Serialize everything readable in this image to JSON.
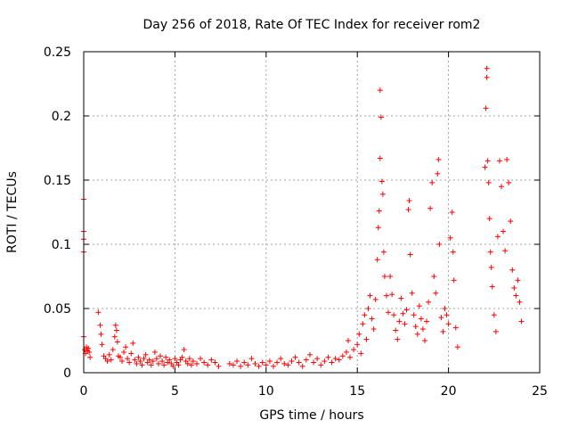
{
  "chart_data": {
    "type": "scatter",
    "title": "Day 256 of 2018, Rate Of TEC Index for receiver rom2",
    "xlabel": "GPS time / hours",
    "ylabel": "ROTI / TECUs",
    "xlim": [
      0,
      25
    ],
    "ylim": [
      0,
      0.25
    ],
    "xticks": [
      0,
      5,
      10,
      15,
      20,
      25
    ],
    "yticks": [
      0,
      0.05,
      0.1,
      0.15,
      0.2,
      0.25
    ],
    "xtick_labels": [
      "0",
      "5",
      "10",
      "15",
      "20",
      "25"
    ],
    "ytick_labels": [
      "0",
      "0.05",
      "0.1",
      "0.15",
      "0.2",
      "0.25"
    ],
    "grid": true,
    "marker": "+",
    "series": [
      {
        "color": "#ff0000",
        "points": [
          [
            0.0,
            0.135
          ],
          [
            0.0,
            0.11
          ],
          [
            0.0,
            0.104
          ],
          [
            0.0,
            0.094
          ],
          [
            0.0,
            0.028
          ],
          [
            0.05,
            0.018
          ],
          [
            0.1,
            0.015
          ],
          [
            0.15,
            0.02
          ],
          [
            0.2,
            0.017
          ],
          [
            0.25,
            0.019
          ],
          [
            0.3,
            0.016
          ],
          [
            0.35,
            0.012
          ],
          [
            0.8,
            0.047
          ],
          [
            0.9,
            0.037
          ],
          [
            0.95,
            0.03
          ],
          [
            1.0,
            0.022
          ],
          [
            1.1,
            0.013
          ],
          [
            1.2,
            0.011
          ],
          [
            1.3,
            0.009
          ],
          [
            1.4,
            0.014
          ],
          [
            1.5,
            0.01
          ],
          [
            1.6,
            0.018
          ],
          [
            1.7,
            0.028
          ],
          [
            1.75,
            0.037
          ],
          [
            1.8,
            0.033
          ],
          [
            1.85,
            0.024
          ],
          [
            1.9,
            0.013
          ],
          [
            2.0,
            0.012
          ],
          [
            2.1,
            0.009
          ],
          [
            2.2,
            0.016
          ],
          [
            2.3,
            0.02
          ],
          [
            2.4,
            0.011
          ],
          [
            2.5,
            0.008
          ],
          [
            2.6,
            0.015
          ],
          [
            2.7,
            0.023
          ],
          [
            2.8,
            0.01
          ],
          [
            2.9,
            0.007
          ],
          [
            3.0,
            0.012
          ],
          [
            3.1,
            0.009
          ],
          [
            3.2,
            0.006
          ],
          [
            3.3,
            0.011
          ],
          [
            3.4,
            0.014
          ],
          [
            3.5,
            0.008
          ],
          [
            3.6,
            0.01
          ],
          [
            3.7,
            0.006
          ],
          [
            3.8,
            0.009
          ],
          [
            3.9,
            0.016
          ],
          [
            4.0,
            0.011
          ],
          [
            4.1,
            0.007
          ],
          [
            4.2,
            0.013
          ],
          [
            4.3,
            0.009
          ],
          [
            4.4,
            0.006
          ],
          [
            4.5,
            0.012
          ],
          [
            4.6,
            0.008
          ],
          [
            4.7,
            0.01
          ],
          [
            4.8,
            0.007
          ],
          [
            4.9,
            0.005
          ],
          [
            5.0,
            0.011
          ],
          [
            5.1,
            0.008
          ],
          [
            5.2,
            0.006
          ],
          [
            5.3,
            0.01
          ],
          [
            5.4,
            0.012
          ],
          [
            5.5,
            0.018
          ],
          [
            5.6,
            0.009
          ],
          [
            5.7,
            0.007
          ],
          [
            5.8,
            0.011
          ],
          [
            5.9,
            0.006
          ],
          [
            6.0,
            0.009
          ],
          [
            6.2,
            0.007
          ],
          [
            6.4,
            0.011
          ],
          [
            6.6,
            0.008
          ],
          [
            6.8,
            0.006
          ],
          [
            7.0,
            0.01
          ],
          [
            7.2,
            0.008
          ],
          [
            7.4,
            0.005
          ],
          [
            8.0,
            0.007
          ],
          [
            8.2,
            0.006
          ],
          [
            8.4,
            0.009
          ],
          [
            8.6,
            0.005
          ],
          [
            8.8,
            0.008
          ],
          [
            9.0,
            0.006
          ],
          [
            9.2,
            0.011
          ],
          [
            9.4,
            0.007
          ],
          [
            9.6,
            0.005
          ],
          [
            9.8,
            0.008
          ],
          [
            10.0,
            0.006
          ],
          [
            10.2,
            0.009
          ],
          [
            10.4,
            0.005
          ],
          [
            10.6,
            0.008
          ],
          [
            10.8,
            0.011
          ],
          [
            11.0,
            0.007
          ],
          [
            11.2,
            0.006
          ],
          [
            11.4,
            0.009
          ],
          [
            11.6,
            0.012
          ],
          [
            11.8,
            0.008
          ],
          [
            12.0,
            0.005
          ],
          [
            12.2,
            0.01
          ],
          [
            12.4,
            0.014
          ],
          [
            12.6,
            0.008
          ],
          [
            12.8,
            0.011
          ],
          [
            13.0,
            0.006
          ],
          [
            13.2,
            0.009
          ],
          [
            13.4,
            0.012
          ],
          [
            13.6,
            0.008
          ],
          [
            13.8,
            0.011
          ],
          [
            14.0,
            0.01
          ],
          [
            14.2,
            0.013
          ],
          [
            14.4,
            0.016
          ],
          [
            14.5,
            0.025
          ],
          [
            14.6,
            0.012
          ],
          [
            14.8,
            0.018
          ],
          [
            15.0,
            0.022
          ],
          [
            15.1,
            0.03
          ],
          [
            15.2,
            0.015
          ],
          [
            15.3,
            0.038
          ],
          [
            15.4,
            0.045
          ],
          [
            15.5,
            0.026
          ],
          [
            15.6,
            0.05
          ],
          [
            15.7,
            0.06
          ],
          [
            15.8,
            0.042
          ],
          [
            15.9,
            0.034
          ],
          [
            16.0,
            0.057
          ],
          [
            16.1,
            0.088
          ],
          [
            16.15,
            0.113
          ],
          [
            16.2,
            0.126
          ],
          [
            16.25,
            0.167
          ],
          [
            16.25,
            0.22
          ],
          [
            16.3,
            0.199
          ],
          [
            16.35,
            0.149
          ],
          [
            16.4,
            0.139
          ],
          [
            16.45,
            0.094
          ],
          [
            16.5,
            0.075
          ],
          [
            16.6,
            0.06
          ],
          [
            16.7,
            0.047
          ],
          [
            16.8,
            0.075
          ],
          [
            16.9,
            0.061
          ],
          [
            17.0,
            0.045
          ],
          [
            17.1,
            0.033
          ],
          [
            17.2,
            0.026
          ],
          [
            17.3,
            0.04
          ],
          [
            17.4,
            0.058
          ],
          [
            17.5,
            0.046
          ],
          [
            17.6,
            0.038
          ],
          [
            17.7,
            0.049
          ],
          [
            17.8,
            0.127
          ],
          [
            17.85,
            0.134
          ],
          [
            17.9,
            0.092
          ],
          [
            18.0,
            0.062
          ],
          [
            18.1,
            0.045
          ],
          [
            18.2,
            0.036
          ],
          [
            18.3,
            0.03
          ],
          [
            18.4,
            0.052
          ],
          [
            18.5,
            0.042
          ],
          [
            18.6,
            0.034
          ],
          [
            18.7,
            0.025
          ],
          [
            18.8,
            0.04
          ],
          [
            18.9,
            0.055
          ],
          [
            19.0,
            0.128
          ],
          [
            19.1,
            0.148
          ],
          [
            19.2,
            0.075
          ],
          [
            19.3,
            0.062
          ],
          [
            19.4,
            0.155
          ],
          [
            19.45,
            0.166
          ],
          [
            19.5,
            0.1
          ],
          [
            19.6,
            0.043
          ],
          [
            19.7,
            0.032
          ],
          [
            19.8,
            0.05
          ],
          [
            19.9,
            0.045
          ],
          [
            20.0,
            0.038
          ],
          [
            20.1,
            0.105
          ],
          [
            20.2,
            0.125
          ],
          [
            20.25,
            0.094
          ],
          [
            20.3,
            0.072
          ],
          [
            20.4,
            0.035
          ],
          [
            20.5,
            0.02
          ],
          [
            22.0,
            0.16
          ],
          [
            22.05,
            0.206
          ],
          [
            22.1,
            0.237
          ],
          [
            22.1,
            0.23
          ],
          [
            22.15,
            0.165
          ],
          [
            22.2,
            0.148
          ],
          [
            22.25,
            0.12
          ],
          [
            22.3,
            0.094
          ],
          [
            22.35,
            0.082
          ],
          [
            22.4,
            0.067
          ],
          [
            22.5,
            0.045
          ],
          [
            22.6,
            0.032
          ],
          [
            22.7,
            0.106
          ],
          [
            22.8,
            0.165
          ],
          [
            22.9,
            0.145
          ],
          [
            23.0,
            0.11
          ],
          [
            23.1,
            0.095
          ],
          [
            23.2,
            0.166
          ],
          [
            23.3,
            0.148
          ],
          [
            23.4,
            0.118
          ],
          [
            23.5,
            0.08
          ],
          [
            23.6,
            0.066
          ],
          [
            23.7,
            0.06
          ],
          [
            23.8,
            0.072
          ],
          [
            23.9,
            0.055
          ],
          [
            24.0,
            0.04
          ]
        ]
      }
    ]
  }
}
